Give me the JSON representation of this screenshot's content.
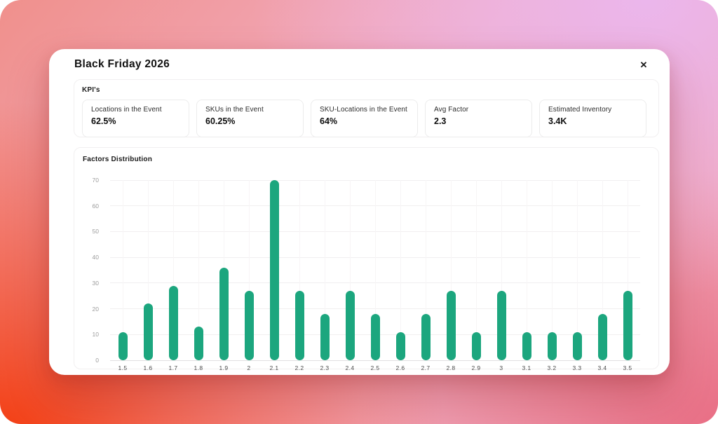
{
  "modal": {
    "title": "Black Friday 2026",
    "close_icon": "✕"
  },
  "kpis": {
    "section_label": "KPI's",
    "items": [
      {
        "label": "Locations in the Event",
        "value": "62.5%"
      },
      {
        "label": "SKUs in the Event",
        "value": "60.25%"
      },
      {
        "label": "SKU-Locations in the Event",
        "value": "64%"
      },
      {
        "label": "Avg Factor",
        "value": "2.3"
      },
      {
        "label": "Estimated Inventory",
        "value": "3.4K"
      }
    ]
  },
  "chart": {
    "title": "Factors Distribution"
  },
  "chart_data": {
    "type": "bar",
    "title": "Factors Distribution",
    "categories": [
      "1.5",
      "1.6",
      "1.7",
      "1.8",
      "1.9",
      "2",
      "2.1",
      "2.2",
      "2.3",
      "2.4",
      "2.5",
      "2.6",
      "2.7",
      "2.8",
      "2.9",
      "3",
      "3.1",
      "3.2",
      "3.3",
      "3.4",
      "3.5"
    ],
    "values": [
      11,
      22,
      29,
      13,
      36,
      27,
      70,
      27,
      18,
      27,
      18,
      11,
      18,
      27,
      11,
      27,
      11,
      11,
      11,
      18,
      27
    ],
    "xlabel": "",
    "ylabel": "",
    "ylim": [
      0,
      70
    ],
    "y_ticks": [
      0,
      10,
      20,
      30,
      40,
      50,
      60,
      70
    ],
    "grid": true,
    "legend": false,
    "bar_color": "#1ca67e"
  },
  "colors": {
    "accent_bar": "#1ca67e",
    "bg_top_left": "#f0908c",
    "bg_top_right": "#ebb6ec",
    "bg_bottom_left": "#f33e12",
    "bg_bottom_right": "#e86980",
    "card_bg": "#ffffff"
  }
}
